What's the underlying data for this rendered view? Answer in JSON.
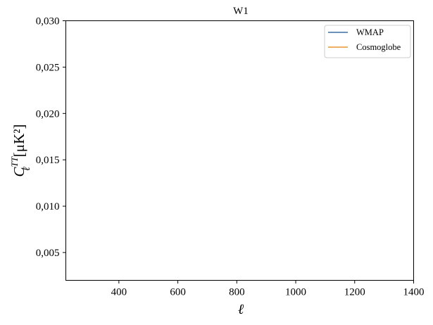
{
  "chart_data": {
    "type": "line",
    "title": "W1",
    "xlabel": "ℓ",
    "ylabel": {
      "symbol": "C",
      "superscript": "TT",
      "subscript": "ℓ",
      "units": "[μK²]"
    },
    "xlim": [
      220,
      1400
    ],
    "ylim": [
      0.002,
      0.03
    ],
    "x_ticks": [
      400,
      600,
      800,
      1000,
      1200,
      1400
    ],
    "x_tick_labels": [
      "400",
      "600",
      "800",
      "1000",
      "1200",
      "1400"
    ],
    "y_ticks": [
      0.005,
      0.01,
      0.015,
      0.02,
      0.025,
      0.03
    ],
    "y_tick_labels": [
      "0,005",
      "0,010",
      "0,015",
      "0,020",
      "0,025",
      "0,030"
    ],
    "grid": false,
    "legend_position": "top-right",
    "series": [
      {
        "name": "WMAP",
        "color": "#3b6ea5",
        "x": [],
        "y": []
      },
      {
        "name": "Cosmoglobe",
        "color": "#e8962e",
        "x": [],
        "y": []
      }
    ]
  }
}
